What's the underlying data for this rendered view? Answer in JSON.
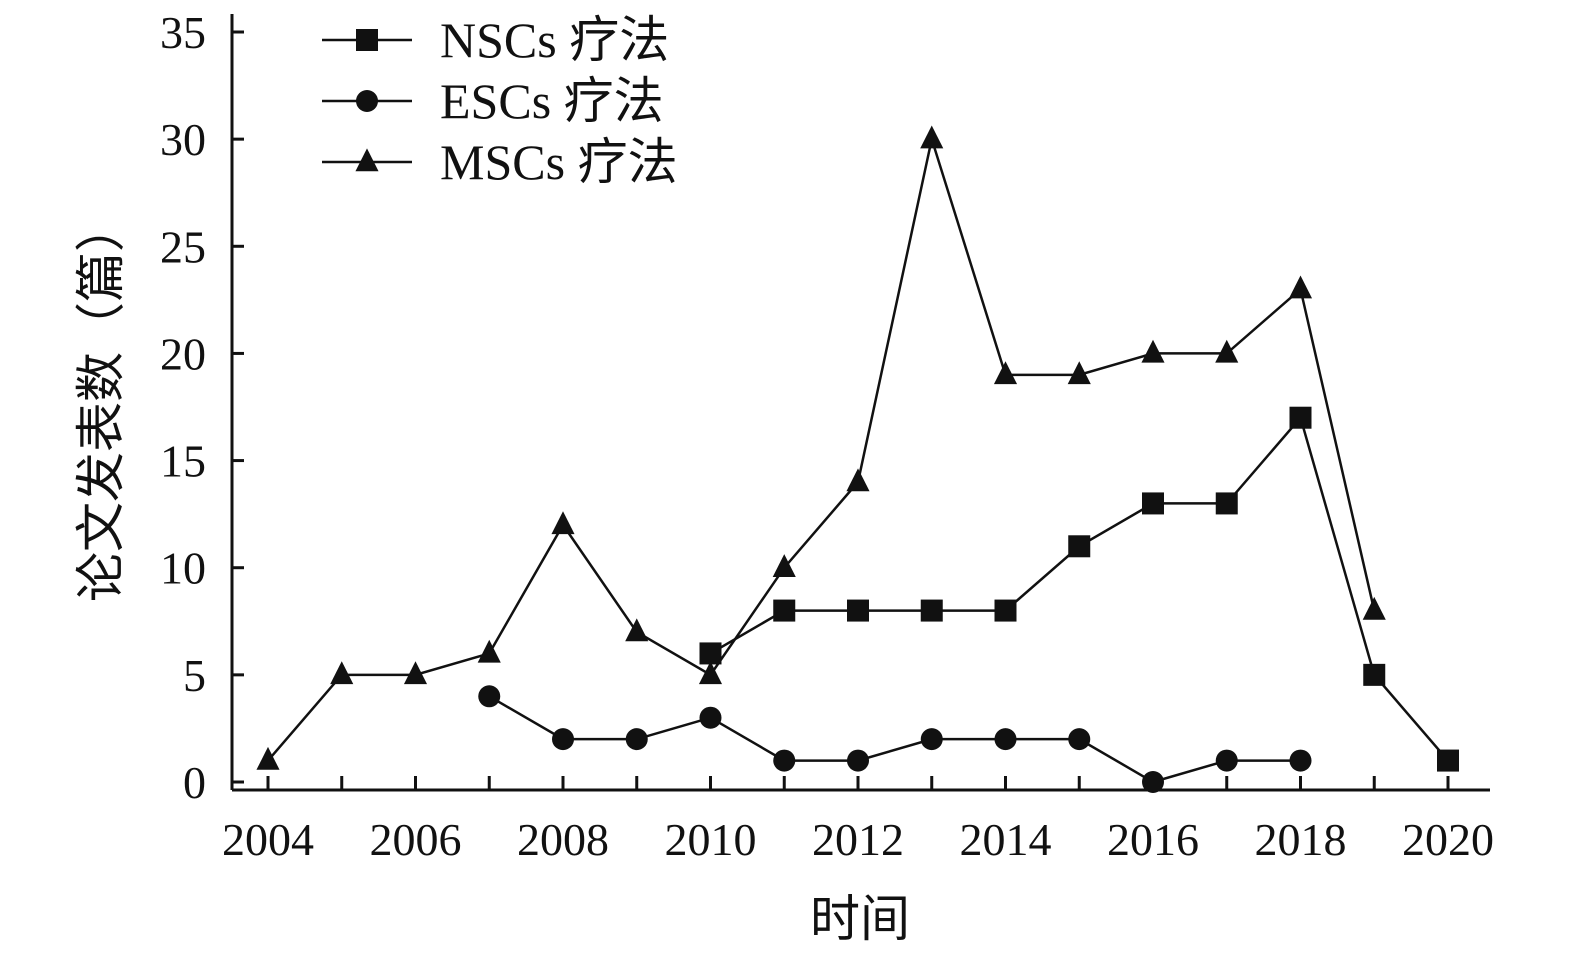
{
  "chart_data": {
    "type": "line",
    "title": "",
    "xlabel": "时间",
    "ylabel": "论文发表数（篇）",
    "xlim": [
      2004,
      2020
    ],
    "ylim": [
      0,
      35
    ],
    "x_ticks": [
      2004,
      2006,
      2008,
      2010,
      2012,
      2014,
      2016,
      2018,
      2020
    ],
    "y_ticks": [
      0,
      5,
      10,
      15,
      20,
      25,
      30,
      35
    ],
    "grid": false,
    "legend_position": "top-left",
    "series": [
      {
        "name": "NSCs 疗法",
        "marker": "square",
        "color": "#111111",
        "points": [
          [
            2010,
            6
          ],
          [
            2011,
            8
          ],
          [
            2012,
            8
          ],
          [
            2013,
            8
          ],
          [
            2014,
            8
          ],
          [
            2015,
            11
          ],
          [
            2016,
            13
          ],
          [
            2017,
            13
          ],
          [
            2018,
            17
          ],
          [
            2019,
            5
          ],
          [
            2020,
            1
          ]
        ]
      },
      {
        "name": "ESCs 疗法",
        "marker": "circle",
        "color": "#111111",
        "points": [
          [
            2007,
            4
          ],
          [
            2008,
            2
          ],
          [
            2009,
            2
          ],
          [
            2010,
            3
          ],
          [
            2011,
            1
          ],
          [
            2012,
            1
          ],
          [
            2013,
            2
          ],
          [
            2014,
            2
          ],
          [
            2015,
            2
          ],
          [
            2016,
            0
          ],
          [
            2017,
            1
          ],
          [
            2018,
            1
          ]
        ]
      },
      {
        "name": "MSCs 疗法",
        "marker": "triangle",
        "color": "#111111",
        "points": [
          [
            2004,
            1
          ],
          [
            2005,
            5
          ],
          [
            2006,
            5
          ],
          [
            2007,
            6
          ],
          [
            2008,
            12
          ],
          [
            2009,
            7
          ],
          [
            2010,
            5
          ],
          [
            2011,
            10
          ],
          [
            2012,
            14
          ],
          [
            2013,
            30
          ],
          [
            2014,
            19
          ],
          [
            2015,
            19
          ],
          [
            2016,
            20
          ],
          [
            2017,
            20
          ],
          [
            2018,
            23
          ],
          [
            2019,
            8
          ]
        ]
      }
    ]
  }
}
